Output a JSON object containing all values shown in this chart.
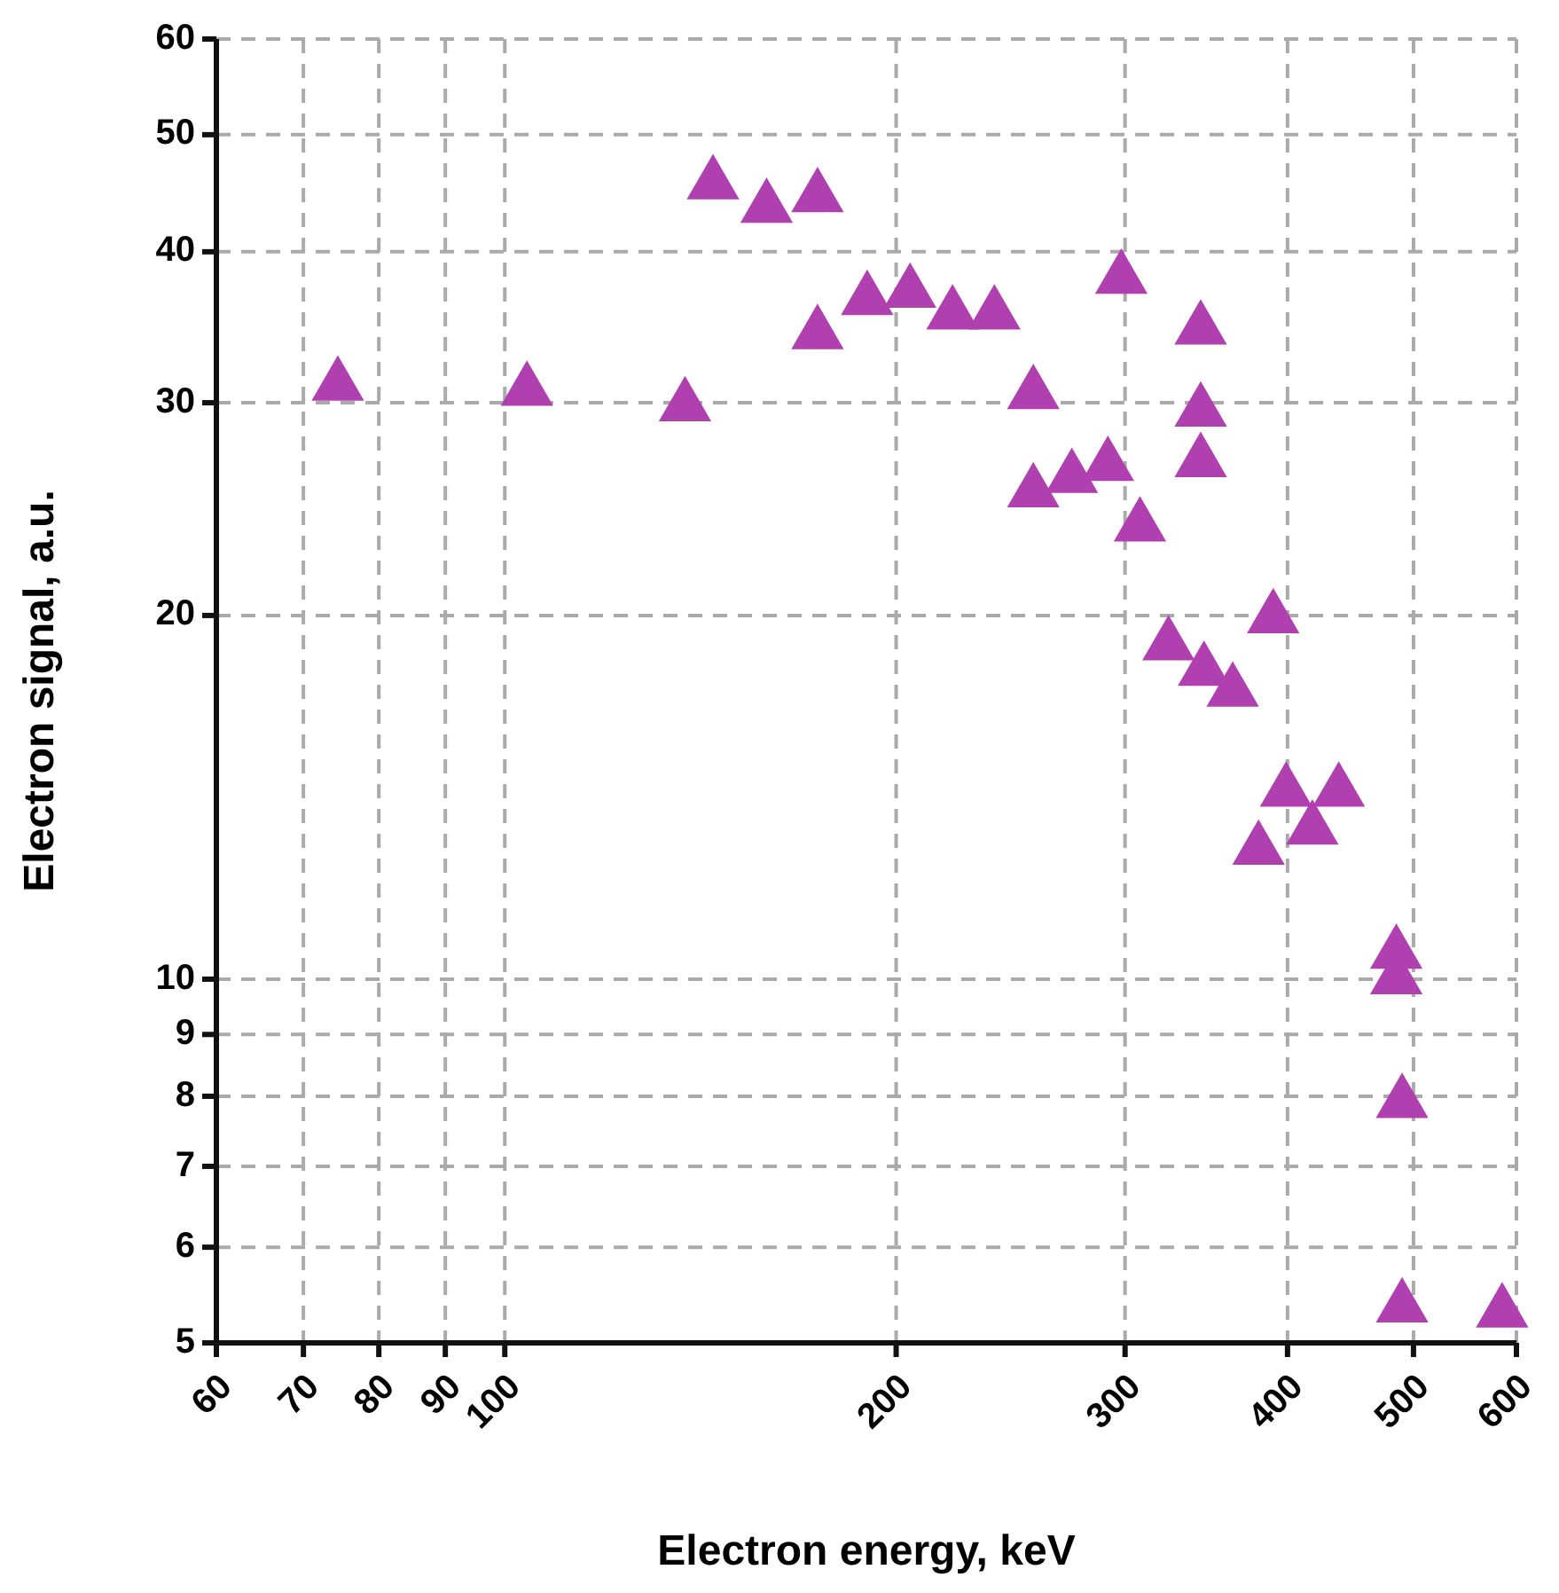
{
  "chart_data": {
    "type": "scatter",
    "xlabel": "Electron energy, keV",
    "ylabel": "Electron signal, a.u.",
    "log": "xy",
    "grid": true,
    "marker": "triangle",
    "xlim": [
      60,
      600
    ],
    "ylim": [
      5,
      60
    ],
    "xticks": [
      60,
      70,
      80,
      90,
      100,
      200,
      300,
      400,
      500,
      600
    ],
    "yticks": [
      5,
      6,
      7,
      8,
      9,
      10,
      20,
      30,
      40,
      50,
      60
    ],
    "series": [
      {
        "color": "#b040b0",
        "x": [
          74.4,
          104,
          137.6,
          144.6,
          159,
          174,
          174,
          190,
          205,
          221,
          238,
          255,
          255,
          273,
          291,
          298,
          308,
          343,
          343,
          343,
          324,
          345,
          363,
          390,
          399,
          438,
          418,
          380,
          485,
          485,
          490,
          490,
          585
        ],
        "values": [
          31.0,
          30.7,
          29.8,
          45.5,
          43.5,
          44.4,
          34.2,
          36.5,
          37.0,
          35.5,
          35.5,
          30.5,
          25.3,
          26.0,
          26.6,
          38.0,
          23.7,
          34.5,
          29.5,
          26.8,
          18.9,
          18.0,
          17.3,
          19.9,
          14.3,
          14.3,
          13.3,
          12.8,
          10.5,
          10.0,
          7.9,
          5.35,
          5.3
        ]
      }
    ]
  }
}
